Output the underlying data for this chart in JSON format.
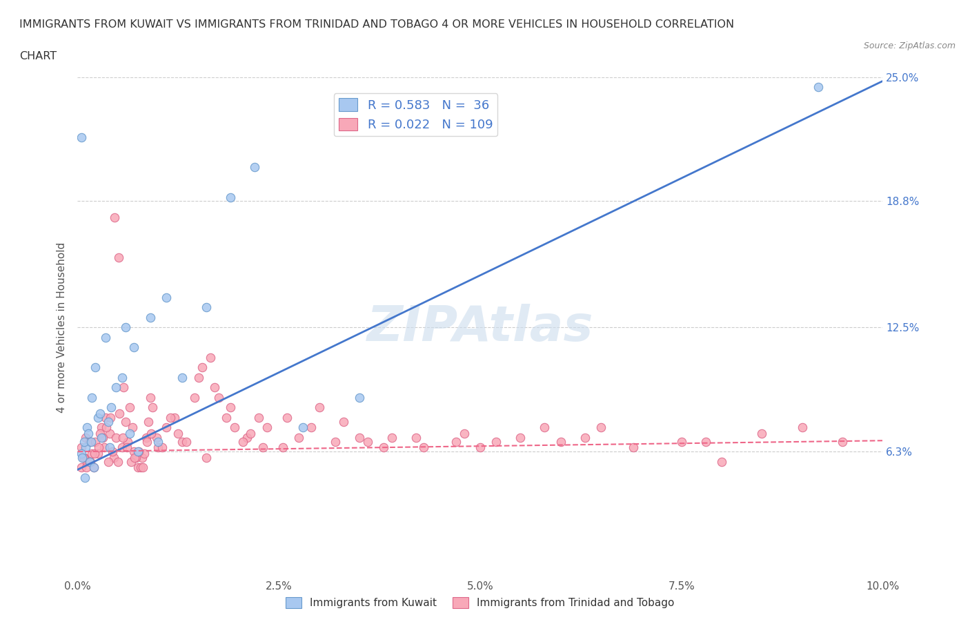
{
  "title_line1": "IMMIGRANTS FROM KUWAIT VS IMMIGRANTS FROM TRINIDAD AND TOBAGO 4 OR MORE VEHICLES IN HOUSEHOLD CORRELATION",
  "title_line2": "CHART",
  "source_text": "Source: ZipAtlas.com",
  "ylabel": "4 or more Vehicles in Household",
  "xlim": [
    0.0,
    10.0
  ],
  "ylim": [
    0.0,
    25.0
  ],
  "xtick_labels": [
    "0.0%",
    "2.5%",
    "5.0%",
    "7.5%",
    "10.0%"
  ],
  "xtick_values": [
    0.0,
    2.5,
    5.0,
    7.5,
    10.0
  ],
  "ytick_labels": [
    "6.3%",
    "12.5%",
    "18.8%",
    "25.0%"
  ],
  "ytick_values": [
    6.3,
    12.5,
    18.8,
    25.0
  ],
  "gridline_y": [
    6.3,
    12.5,
    18.8,
    25.0
  ],
  "kuwait_color": "#a8c8f0",
  "kuwait_edge": "#6699cc",
  "trinidad_color": "#f8a8b8",
  "trinidad_edge": "#dd6688",
  "kuwait_R": 0.583,
  "kuwait_N": 36,
  "trinidad_R": 0.022,
  "trinidad_N": 109,
  "blue_line_color": "#4477cc",
  "pink_line_color": "#ee6688",
  "watermark_color": "#ccddee",
  "background_color": "#ffffff",
  "legend_text_color": "#4477cc",
  "kuwait_scatter_x": [
    0.3,
    0.1,
    0.05,
    0.15,
    0.2,
    0.08,
    0.12,
    0.25,
    0.18,
    0.22,
    0.35,
    0.42,
    0.55,
    0.7,
    0.9,
    1.1,
    1.3,
    1.6,
    1.9,
    2.2,
    2.8,
    3.5,
    0.06,
    0.09,
    0.13,
    0.17,
    0.28,
    0.38,
    0.48,
    0.6,
    0.75,
    1.0,
    9.2,
    0.05,
    0.4,
    0.65
  ],
  "kuwait_scatter_y": [
    7.0,
    6.5,
    6.2,
    5.8,
    5.5,
    6.8,
    7.5,
    8.0,
    9.0,
    10.5,
    12.0,
    8.5,
    10.0,
    11.5,
    13.0,
    14.0,
    10.0,
    13.5,
    19.0,
    20.5,
    7.5,
    9.0,
    6.0,
    5.0,
    7.2,
    6.8,
    8.2,
    7.8,
    9.5,
    12.5,
    6.3,
    6.8,
    24.5,
    22.0,
    6.5,
    7.2
  ],
  "trinidad_scatter_x": [
    0.05,
    0.1,
    0.15,
    0.2,
    0.25,
    0.3,
    0.35,
    0.4,
    0.45,
    0.5,
    0.55,
    0.6,
    0.65,
    0.7,
    0.75,
    0.8,
    0.85,
    0.9,
    1.0,
    1.1,
    1.2,
    1.3,
    1.5,
    1.7,
    1.9,
    2.1,
    2.3,
    2.6,
    2.9,
    3.2,
    3.5,
    3.8,
    4.2,
    4.7,
    5.0,
    5.5,
    6.0,
    6.5,
    7.5,
    8.0,
    0.05,
    0.08,
    0.12,
    0.18,
    0.22,
    0.28,
    0.33,
    0.38,
    0.43,
    0.48,
    0.52,
    0.57,
    0.62,
    0.68,
    0.72,
    0.78,
    0.83,
    0.88,
    0.93,
    0.98,
    1.05,
    1.15,
    1.25,
    1.35,
    1.45,
    1.55,
    1.65,
    1.75,
    1.85,
    1.95,
    2.05,
    2.15,
    2.25,
    2.35,
    2.55,
    2.75,
    3.0,
    3.3,
    3.6,
    3.9,
    4.3,
    4.8,
    5.2,
    5.8,
    6.3,
    6.9,
    7.8,
    8.5,
    9.0,
    9.5,
    0.07,
    0.11,
    0.16,
    0.21,
    0.26,
    0.31,
    0.36,
    0.41,
    0.46,
    0.51,
    0.56,
    0.61,
    0.66,
    0.71,
    0.76,
    0.81,
    0.86,
    0.91,
    1.6
  ],
  "trinidad_scatter_y": [
    6.5,
    7.0,
    6.8,
    5.5,
    6.2,
    7.5,
    8.0,
    7.2,
    6.0,
    5.8,
    6.5,
    7.8,
    8.5,
    6.3,
    5.5,
    6.0,
    7.0,
    9.0,
    6.5,
    7.5,
    8.0,
    6.8,
    10.0,
    9.5,
    8.5,
    7.0,
    6.5,
    8.0,
    7.5,
    6.8,
    7.0,
    6.5,
    7.0,
    6.8,
    6.5,
    7.0,
    6.8,
    7.5,
    6.8,
    5.8,
    5.5,
    6.0,
    5.8,
    6.2,
    6.8,
    7.2,
    6.5,
    5.8,
    6.3,
    7.0,
    8.2,
    9.5,
    6.8,
    7.5,
    6.0,
    5.5,
    6.2,
    7.8,
    8.5,
    7.0,
    6.5,
    8.0,
    7.2,
    6.8,
    9.0,
    10.5,
    11.0,
    9.0,
    8.0,
    7.5,
    6.8,
    7.2,
    8.0,
    7.5,
    6.5,
    7.0,
    8.5,
    7.8,
    6.8,
    7.0,
    6.5,
    7.2,
    6.8,
    7.5,
    7.0,
    6.5,
    6.8,
    7.2,
    7.5,
    6.8,
    6.0,
    5.5,
    5.8,
    6.2,
    6.5,
    7.0,
    7.5,
    8.0,
    18.0,
    16.0,
    7.0,
    6.5,
    5.8,
    6.0,
    6.3,
    5.5,
    6.8,
    7.2,
    6.0
  ],
  "kuwait_line_x": [
    0.0,
    10.0
  ],
  "kuwait_line_y": [
    5.4,
    24.8
  ],
  "trinidad_line_x": [
    0.0,
    10.0
  ],
  "trinidad_line_y": [
    6.3,
    6.85
  ]
}
